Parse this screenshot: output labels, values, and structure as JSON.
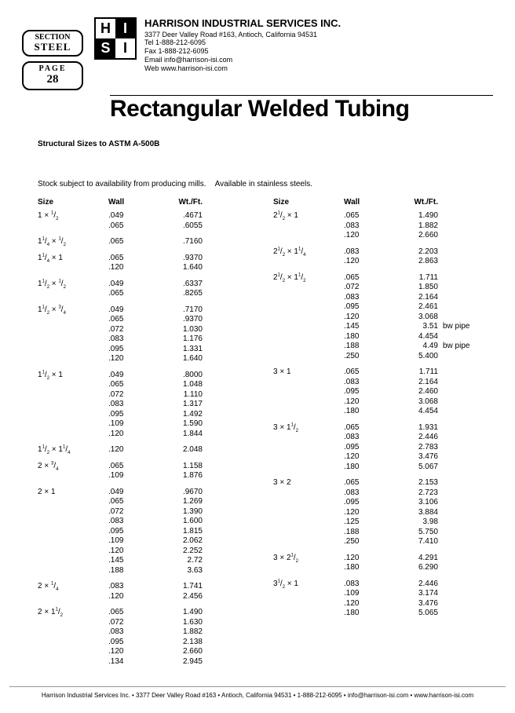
{
  "section": {
    "label": "SECTION",
    "value": "STEEL"
  },
  "page": {
    "label": "PAGE",
    "value": "28"
  },
  "company": {
    "name": "HARRISON INDUSTRIAL SERVICES INC.",
    "address": "3377 Deer Valley Road #163, Antioch, California 94531",
    "tel": "Tel  1-888-212-6095",
    "fax": "Fax  1-888-212-6095",
    "email": "Email  info@harrison-isi.com",
    "web": "Web  www.harrison-isi.com"
  },
  "title": "Rectangular Welded Tubing",
  "subtitle": "Structural Sizes to ASTM A-500B",
  "note": "Stock subject to availability from producing mills.    Available in stainless steels.",
  "headers": {
    "size": "Size",
    "wall": "Wall",
    "wt": "Wt./Ft."
  },
  "left_groups": [
    {
      "size": "1 × <sup>1</sup>/<sub>2</sub>",
      "rows": [
        {
          "wall": ".049",
          "wt": ".4671"
        },
        {
          "wall": ".065",
          "wt": ".6055"
        }
      ]
    },
    {
      "size": "1<sup>1</sup>/<sub>4</sub> × <sup>1</sup>/<sub>2</sub>",
      "rows": [
        {
          "wall": ".065",
          "wt": ".7160"
        }
      ]
    },
    {
      "size": "1<sup>1</sup>/<sub>4</sub> × 1",
      "rows": [
        {
          "wall": ".065",
          "wt": ".9370"
        },
        {
          "wall": ".120",
          "wt": "1.640"
        }
      ]
    },
    {
      "size": "1<sup>1</sup>/<sub>2</sub> × <sup>1</sup>/<sub>2</sub>",
      "rows": [
        {
          "wall": ".049",
          "wt": ".6337"
        },
        {
          "wall": ".065",
          "wt": ".8265"
        }
      ]
    },
    {
      "size": "1<sup>1</sup>/<sub>2</sub> × <sup>3</sup>/<sub>4</sub>",
      "rows": [
        {
          "wall": ".049",
          "wt": ".7170"
        },
        {
          "wall": ".065",
          "wt": ".9370"
        },
        {
          "wall": ".072",
          "wt": "1.030"
        },
        {
          "wall": ".083",
          "wt": "1.176"
        },
        {
          "wall": ".095",
          "wt": "1.331"
        },
        {
          "wall": ".120",
          "wt": "1.640"
        }
      ]
    },
    {
      "size": "1<sup>1</sup>/<sub>2</sub> × 1",
      "rows": [
        {
          "wall": ".049",
          "wt": ".8000"
        },
        {
          "wall": ".065",
          "wt": "1.048"
        },
        {
          "wall": ".072",
          "wt": "1.110"
        },
        {
          "wall": ".083",
          "wt": "1.317"
        },
        {
          "wall": ".095",
          "wt": "1.492"
        },
        {
          "wall": ".109",
          "wt": "1.590"
        },
        {
          "wall": ".120",
          "wt": "1.844"
        }
      ]
    },
    {
      "size": "1<sup>1</sup>/<sub>2</sub> × 1<sup>1</sup>/<sub>4</sub>",
      "rows": [
        {
          "wall": ".120",
          "wt": "2.048"
        }
      ]
    },
    {
      "size": "2 × <sup>3</sup>/<sub>4</sub>",
      "rows": [
        {
          "wall": ".065",
          "wt": "1.158"
        },
        {
          "wall": ".109",
          "wt": "1.876"
        }
      ]
    },
    {
      "size": "2 × 1",
      "rows": [
        {
          "wall": ".049",
          "wt": ".9670"
        },
        {
          "wall": ".065",
          "wt": "1.269"
        },
        {
          "wall": ".072",
          "wt": "1.390"
        },
        {
          "wall": ".083",
          "wt": "1.600"
        },
        {
          "wall": ".095",
          "wt": "1.815"
        },
        {
          "wall": ".109",
          "wt": "2.062"
        },
        {
          "wall": ".120",
          "wt": "2.252"
        },
        {
          "wall": ".145",
          "wt": "2.72"
        },
        {
          "wall": ".188",
          "wt": "3.63"
        }
      ]
    },
    {
      "size": "2 × <sup>1</sup>/<sub>4</sub>",
      "rows": [
        {
          "wall": ".083",
          "wt": "1.741"
        },
        {
          "wall": ".120",
          "wt": "2.456"
        }
      ]
    },
    {
      "size": "2 × 1<sup>1</sup>/<sub>2</sub>",
      "rows": [
        {
          "wall": ".065",
          "wt": "1.490"
        },
        {
          "wall": ".072",
          "wt": "1.630"
        },
        {
          "wall": ".083",
          "wt": "1.882"
        },
        {
          "wall": ".095",
          "wt": "2.138"
        },
        {
          "wall": ".120",
          "wt": "2.660"
        },
        {
          "wall": ".134",
          "wt": "2.945"
        }
      ]
    }
  ],
  "right_groups": [
    {
      "size": "2<sup>1</sup>/<sub>2</sub> × 1",
      "rows": [
        {
          "wall": ".065",
          "wt": "1.490"
        },
        {
          "wall": ".083",
          "wt": "1.882"
        },
        {
          "wall": ".120",
          "wt": "2.660"
        }
      ]
    },
    {
      "size": "2<sup>1</sup>/<sub>2</sub> × 1<sup>1</sup>/<sub>4</sub>",
      "rows": [
        {
          "wall": ".083",
          "wt": "2.203"
        },
        {
          "wall": ".120",
          "wt": "2.863"
        }
      ]
    },
    {
      "size": "2<sup>1</sup>/<sub>2</sub> × 1<sup>1</sup>/<sub>2</sub>",
      "rows": [
        {
          "wall": ".065",
          "wt": "1.711"
        },
        {
          "wall": ".072",
          "wt": "1.850"
        },
        {
          "wall": ".083",
          "wt": "2.164"
        },
        {
          "wall": ".095",
          "wt": "2.461"
        },
        {
          "wall": ".120",
          "wt": "3.068"
        },
        {
          "wall": ".145",
          "wt": "3.51",
          "note": "bw pipe"
        },
        {
          "wall": ".180",
          "wt": "4.454"
        },
        {
          "wall": ".188",
          "wt": "4.49",
          "note": "bw pipe"
        },
        {
          "wall": ".250",
          "wt": "5.400"
        }
      ]
    },
    {
      "size": "3 × 1",
      "rows": [
        {
          "wall": ".065",
          "wt": "1.711"
        },
        {
          "wall": ".083",
          "wt": "2.164"
        },
        {
          "wall": ".095",
          "wt": "2.460"
        },
        {
          "wall": ".120",
          "wt": "3.068"
        },
        {
          "wall": ".180",
          "wt": "4.454"
        }
      ]
    },
    {
      "size": "3 × 1<sup>1</sup>/<sub>2</sub>",
      "rows": [
        {
          "wall": ".065",
          "wt": "1.931"
        },
        {
          "wall": ".083",
          "wt": "2.446"
        },
        {
          "wall": ".095",
          "wt": "2.783"
        },
        {
          "wall": ".120",
          "wt": "3.476"
        },
        {
          "wall": ".180",
          "wt": "5.067"
        }
      ]
    },
    {
      "size": "3 × 2",
      "rows": [
        {
          "wall": ".065",
          "wt": "2.153"
        },
        {
          "wall": ".083",
          "wt": "2.723"
        },
        {
          "wall": ".095",
          "wt": "3.106"
        },
        {
          "wall": ".120",
          "wt": "3.884"
        },
        {
          "wall": ".125",
          "wt": "3.98"
        },
        {
          "wall": ".188",
          "wt": "5.750"
        },
        {
          "wall": ".250",
          "wt": "7.410"
        }
      ]
    },
    {
      "size": "3 × 2<sup>1</sup>/<sub>2</sub>",
      "rows": [
        {
          "wall": ".120",
          "wt": "4.291"
        },
        {
          "wall": ".180",
          "wt": "6.290"
        }
      ]
    },
    {
      "size": "3<sup>1</sup>/<sub>2</sub> × 1",
      "rows": [
        {
          "wall": ".083",
          "wt": "2.446"
        },
        {
          "wall": ".109",
          "wt": "3.174"
        },
        {
          "wall": ".120",
          "wt": "3.476"
        },
        {
          "wall": ".180",
          "wt": "5.065"
        }
      ]
    }
  ],
  "footer": "Harrison Industrial Services Inc. • 3377 Deer Valley Road #163 • Antioch, California 94531 • 1-888-212-6095 • info@harrison-isi.com • www.harrison-isi.com"
}
